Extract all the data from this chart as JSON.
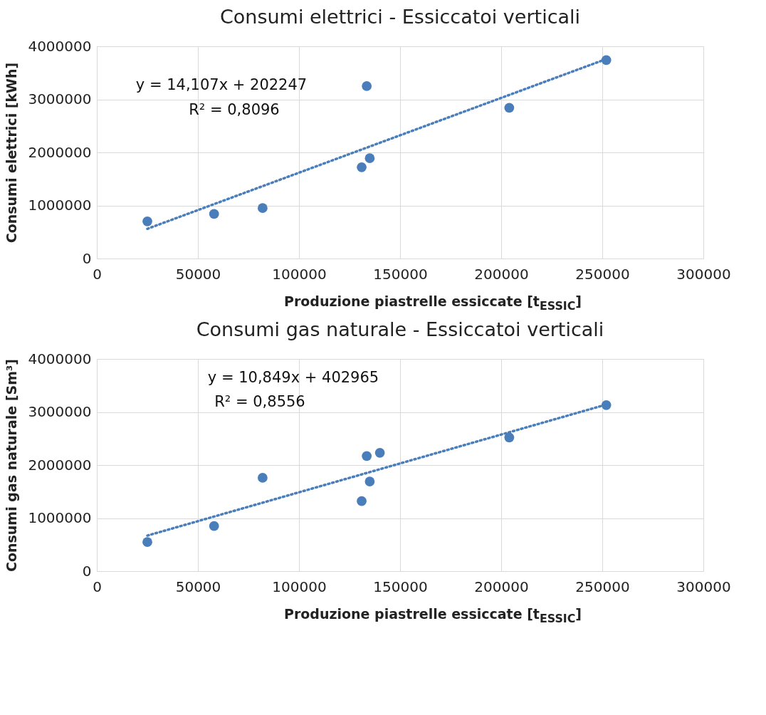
{
  "chart_data": [
    {
      "type": "scatter",
      "title": "Consumi elettrici - Essiccatoi verticali",
      "xlabel": "Produzione piastrelle essiccate [t$_{ESSIC}$]",
      "ylabel": "Consumi elettrici [kWh]",
      "xlim": [
        0,
        300000
      ],
      "xticks": [
        0,
        50000,
        100000,
        150000,
        200000,
        250000,
        300000
      ],
      "ylim": [
        0,
        4000000
      ],
      "yticks": [
        0,
        1000000,
        2000000,
        3000000,
        4000000
      ],
      "grid": true,
      "annotations": [
        "y = 14,107x + 202247",
        "R² = 0,8096"
      ],
      "series": [
        {
          "marker": "circle",
          "color": "#4a7ebb",
          "x": [
            25000,
            58000,
            82000,
            131000,
            135000,
            133500,
            204000,
            252000
          ],
          "values": [
            700000,
            840000,
            950000,
            1720000,
            1890000,
            3250000,
            2840000,
            3740000
          ]
        },
        {
          "type": "line",
          "color": "#4a7ebb",
          "line_style": "dotted",
          "x": [
            25000,
            252000
          ],
          "values": [
            560000,
            3760000
          ]
        }
      ]
    },
    {
      "type": "scatter",
      "title": "Consumi gas naturale - Essiccatoi verticali",
      "xlabel": "Produzione piastrelle essiccate [t$_{ESSIC}$]",
      "ylabel": "Consumi gas naturale [Sm³]",
      "xlim": [
        0,
        300000
      ],
      "xticks": [
        0,
        50000,
        100000,
        150000,
        200000,
        250000,
        300000
      ],
      "ylim": [
        0,
        4000000
      ],
      "yticks": [
        0,
        1000000,
        2000000,
        3000000,
        4000000
      ],
      "grid": true,
      "annotations": [
        "y = 10,849x + 402965",
        "R² = 0,8556"
      ],
      "series": [
        {
          "marker": "circle",
          "color": "#4a7ebb",
          "x": [
            25000,
            58000,
            82000,
            131000,
            133500,
            135000,
            140000,
            204000,
            252000
          ],
          "values": [
            550000,
            850000,
            1760000,
            1320000,
            2170000,
            1690000,
            2230000,
            2520000,
            3130000
          ]
        },
        {
          "type": "line",
          "color": "#4a7ebb",
          "line_style": "dotted",
          "x": [
            25000,
            252000
          ],
          "values": [
            670000,
            3140000
          ]
        }
      ]
    }
  ]
}
